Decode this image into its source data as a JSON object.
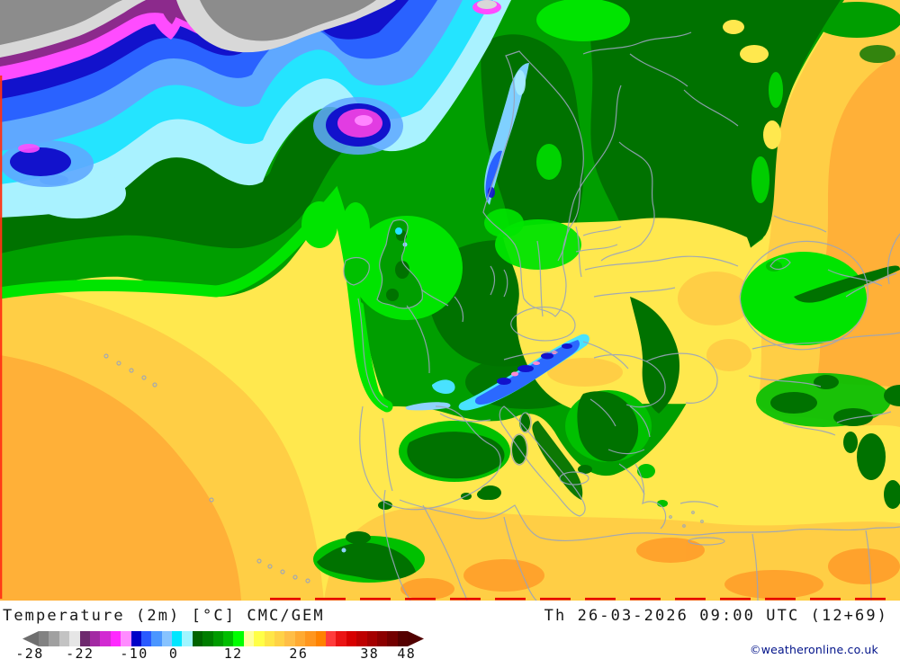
{
  "header": {
    "title_left": "Temperature (2m) [°C] CMC/GEM",
    "title_right": "Th 26-03-2026 09:00 UTC (12+69)"
  },
  "footer": {
    "copyright": "©weatheronline.co.uk"
  },
  "colorbar": {
    "left_arrow_color": "#6e6e6e",
    "right_arrow_color": "#500000",
    "segments": [
      "#828282",
      "#a0a0a0",
      "#c3c3c3",
      "#e6e6e6",
      "#6e2a6e",
      "#a32aa3",
      "#d22ad2",
      "#ff2aff",
      "#ff8cff",
      "#0000c8",
      "#2a5aff",
      "#4b96ff",
      "#87c3ff",
      "#00e6ff",
      "#a0f5ff",
      "#006400",
      "#007d00",
      "#009b00",
      "#00be00",
      "#00ff00",
      "#ffff9b",
      "#ffff46",
      "#ffe646",
      "#ffd246",
      "#ffbe46",
      "#ffaa32",
      "#ff961e",
      "#ff8200",
      "#ff3c3c",
      "#eb1414",
      "#d70000",
      "#be0000",
      "#a50000",
      "#8c0000",
      "#730000",
      "#550000"
    ],
    "labels": [
      {
        "t": "-28",
        "p": 1.8
      },
      {
        "t": "-22",
        "p": 14.3
      },
      {
        "t": "-10",
        "p": 27.8
      },
      {
        "t": "0",
        "p": 37.7
      },
      {
        "t": "12",
        "p": 52.5
      },
      {
        "t": "26",
        "p": 68.8
      },
      {
        "t": "38",
        "p": 86.5
      },
      {
        "t": "48",
        "p": 95.7
      }
    ]
  },
  "map": {
    "palette": {
      "base_yellow": "#ffe84e",
      "gold": "#ffce45",
      "orange": "#ffb038",
      "deep_orange": "#ff9b28",
      "green_main": "#009e00",
      "green_dark": "#007200",
      "green_mid": "#00c000",
      "green_bright": "#00e400",
      "pale_cyan": "#a9f2ff",
      "cyan": "#24e4ff",
      "light_blue": "#5fa8ff",
      "pale_blue": "#8fd2ff",
      "alp_cyan": "#49e2ff",
      "blue": "#2a62ff",
      "dark_blue": "#1212cc",
      "magenta": "#ff4cff",
      "magenta_deep": "#e23ce2",
      "light_magenta": "#ff85ff",
      "pink": "#ff8ad2",
      "purple": "#8c2a8c",
      "gray_dark": "#8c8c8c",
      "gray_light": "#d8d8d8",
      "norway_cyan": "#7fd0ff",
      "norway_light": "#a8ecff",
      "border": "#9aa4bc",
      "red_edge": "#ff3214",
      "red_dash": "#e60000"
    }
  }
}
